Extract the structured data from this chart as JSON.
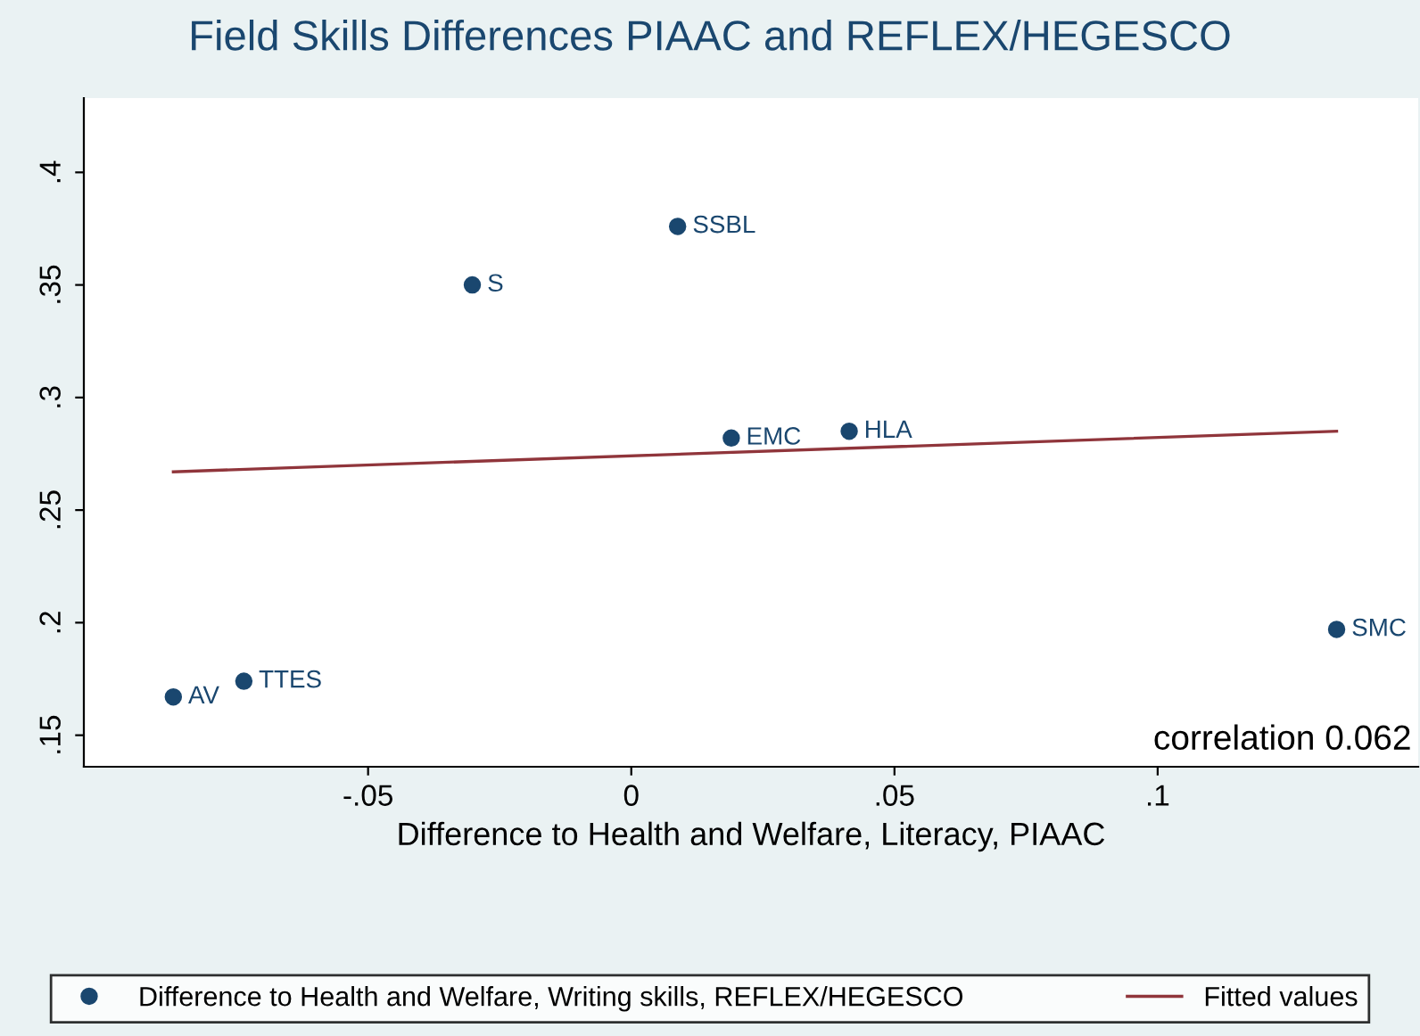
{
  "chart_data": {
    "type": "scatter",
    "title": "Field Skills Differences PIAAC and REFLEX/HEGESCO",
    "xlabel": "Difference to Health and Welfare, Literacy, PIAAC",
    "series": [
      {
        "name": "Difference to Health and Welfare, Writing skills, REFLEX/HEGESCO",
        "color": "#1a476f",
        "marker": "circle",
        "x": [
          -0.087,
          -0.0736,
          -0.0302,
          0.0088,
          0.019,
          0.0414,
          0.134
        ],
        "values": [
          0.167,
          0.174,
          0.35,
          0.376,
          0.282,
          0.285,
          0.197
        ]
      },
      {
        "name": "Fitted values",
        "type": "line",
        "color": "#90353b",
        "marker": "none",
        "x": [
          -0.087,
          0.134
        ],
        "values": [
          0.267,
          0.285
        ]
      }
    ],
    "annotations": [
      {
        "text": "AV",
        "x": -0.087,
        "y": 0.167
      },
      {
        "text": "TTES",
        "x": -0.0736,
        "y": 0.174
      },
      {
        "text": "S",
        "x": -0.0302,
        "y": 0.35
      },
      {
        "text": "SSBL",
        "x": 0.0088,
        "y": 0.376
      },
      {
        "text": "EMC",
        "x": 0.019,
        "y": 0.282
      },
      {
        "text": "HLA",
        "x": 0.0414,
        "y": 0.285
      },
      {
        "text": "SMC",
        "x": 0.134,
        "y": 0.197
      },
      "correlation 0.062"
    ],
    "xlim": [
      -0.104,
      0.1495
    ],
    "ylim": [
      0.136,
      0.433
    ],
    "xticks": [
      {
        "value": -0.05,
        "label": "-.05"
      },
      0,
      {
        "value": 0.05,
        "label": ".05"
      },
      {
        "value": 0.1,
        "label": ".1"
      }
    ],
    "yticks": [
      {
        "value": 0.15,
        "label": ".15"
      },
      {
        "value": 0.2,
        "label": ".2"
      },
      {
        "value": 0.25,
        "label": ".25"
      },
      {
        "value": 0.3,
        "label": ".3"
      },
      {
        "value": 0.35,
        "label": ".35"
      },
      {
        "value": 0.4,
        "label": ".4"
      }
    ],
    "grid": false,
    "legend": "bottom"
  }
}
